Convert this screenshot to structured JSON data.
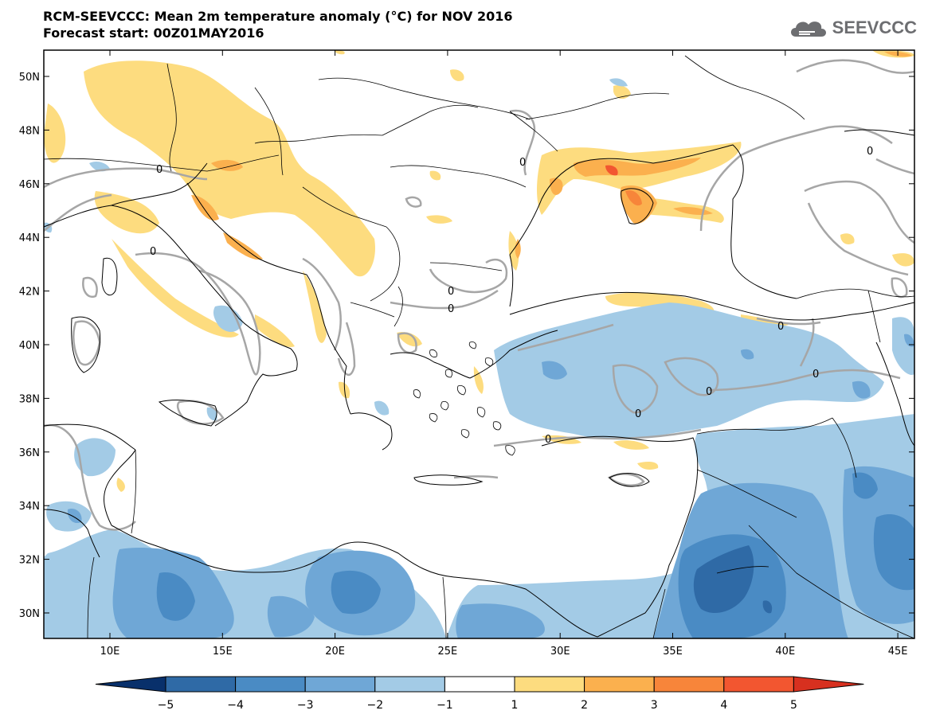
{
  "header": {
    "title_line1": "RCM-SEEVCCC: Mean 2m temperature anomaly (°C) for NOV 2016",
    "title_line2": "Forecast start: 00Z01MAY2016"
  },
  "logo": {
    "text": "SEEVCCC",
    "icon": "cloud-icon"
  },
  "map": {
    "lat_labels": [
      "50N",
      "48N",
      "46N",
      "44N",
      "42N",
      "40N",
      "38N",
      "36N",
      "34N",
      "32N",
      "30N"
    ],
    "lon_labels": [
      "10E",
      "15E",
      "20E",
      "25E",
      "30E",
      "35E",
      "40E",
      "45E"
    ],
    "contour_label": "0"
  },
  "colorbar": {
    "labels": [
      "−5",
      "−4",
      "−3",
      "−2",
      "−1",
      "1",
      "2",
      "3",
      "4",
      "5"
    ],
    "colors": [
      "#08306b",
      "#2f6aa6",
      "#4a8bc4",
      "#6fa7d6",
      "#a3cbe6",
      "#ffffff",
      "#fddc7f",
      "#fbb04e",
      "#f7853a",
      "#f25630",
      "#d7301f"
    ]
  }
}
